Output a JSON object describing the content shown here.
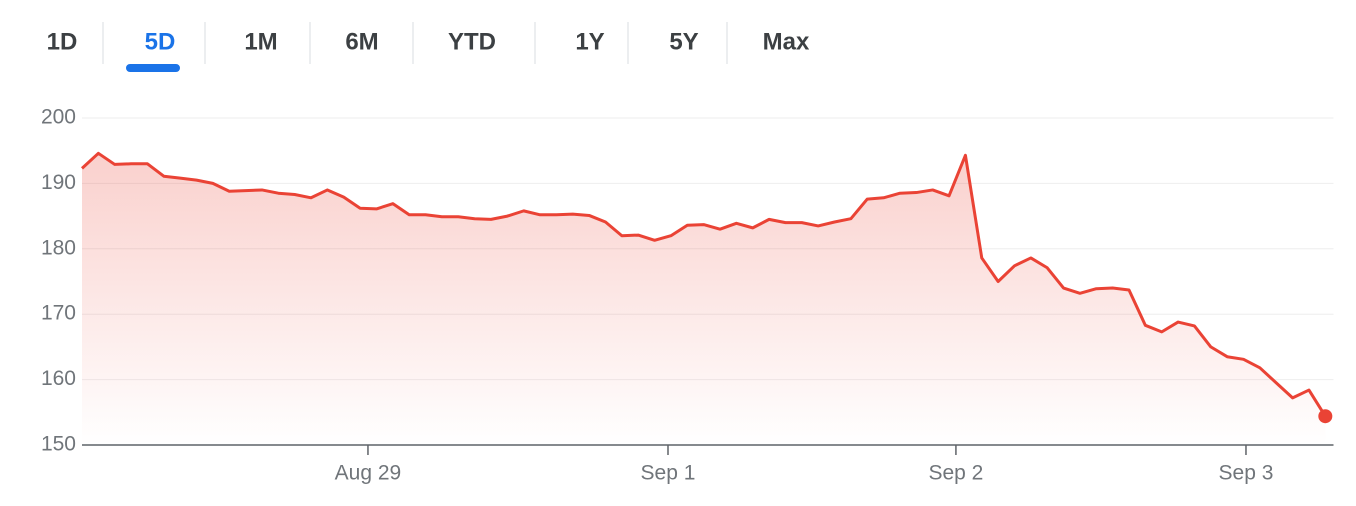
{
  "range_tabs": {
    "items": [
      "1D",
      "5D",
      "1M",
      "6M",
      "YTD",
      "1Y",
      "5Y",
      "Max"
    ],
    "selected": 1
  },
  "chart_data": {
    "type": "line",
    "color": "#ea4335",
    "grid": true,
    "x": [
      0,
      1,
      2,
      3,
      4,
      5,
      6,
      7,
      8,
      9,
      10,
      11,
      12,
      13,
      14,
      15,
      16,
      17,
      18,
      19,
      20,
      21,
      22,
      23,
      24,
      25,
      26,
      27,
      28,
      29,
      30,
      31,
      32,
      33,
      34,
      35,
      36,
      37,
      38,
      39,
      40,
      41,
      42,
      43,
      44,
      45,
      46,
      47,
      48,
      49,
      50,
      51,
      52,
      53,
      54,
      55,
      56,
      57,
      58,
      59,
      60,
      61,
      62,
      63,
      64,
      65,
      66,
      67,
      68,
      69,
      70,
      71,
      72,
      73,
      74,
      75,
      76
    ],
    "values": [
      192.3,
      194.6,
      192.9,
      193.0,
      193.0,
      191.1,
      190.8,
      190.5,
      190.0,
      188.8,
      188.9,
      189.0,
      188.5,
      188.3,
      187.8,
      189.0,
      187.9,
      186.2,
      186.1,
      186.9,
      185.2,
      185.2,
      184.9,
      184.9,
      184.6,
      184.5,
      185.0,
      185.8,
      185.2,
      185.2,
      185.3,
      185.1,
      184.1,
      182.0,
      182.1,
      181.3,
      182.0,
      183.6,
      183.7,
      183.0,
      183.9,
      183.2,
      184.5,
      184.0,
      184.0,
      183.5,
      184.1,
      184.6,
      187.6,
      187.8,
      188.5,
      188.6,
      189.0,
      188.1,
      194.3,
      178.6,
      175.0,
      177.4,
      178.6,
      177.1,
      174.0,
      173.2,
      173.9,
      174.0,
      173.7,
      168.3,
      167.3,
      168.8,
      168.2,
      165.0,
      163.5,
      163.1,
      161.8,
      159.5,
      157.2,
      158.4,
      154.4
    ],
    "xlim": [
      0,
      76.5
    ],
    "xticks": [
      {
        "value": 17.48,
        "label": "Aug 29"
      },
      {
        "value": 35.82,
        "label": "Sep 1"
      },
      {
        "value": 53.42,
        "label": "Sep 2"
      },
      {
        "value": 71.15,
        "label": "Sep 3"
      }
    ],
    "ylim": [
      150,
      200
    ],
    "yticks": [
      150,
      160,
      170,
      180,
      190,
      200
    ]
  }
}
